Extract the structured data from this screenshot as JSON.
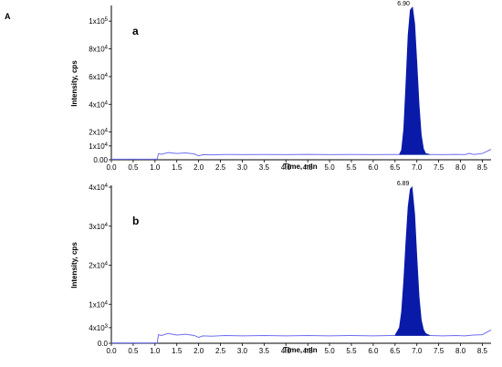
{
  "figure_label": "A",
  "chart_data": [
    {
      "type": "area",
      "panel_label": "a",
      "xlabel": "Time, min",
      "ylabel": "Intensity, cps",
      "xlim": [
        0,
        8.7
      ],
      "ylim": [
        0,
        110000
      ],
      "x_ticks": [
        0.0,
        0.5,
        1.0,
        1.5,
        2.0,
        2.5,
        3.0,
        3.5,
        4.0,
        4.5,
        5.0,
        5.5,
        6.0,
        6.5,
        7.0,
        7.5,
        8.0,
        8.5
      ],
      "x_tick_labels": [
        "0.0",
        "0.5",
        "1.0",
        "1.5",
        "2.0",
        "2.5",
        "3.0",
        "3.5",
        "4.0",
        "4.5",
        "5.0",
        "5.5",
        "6.0",
        "6.5",
        "7.0",
        "7.5",
        "8.0",
        "8.5"
      ],
      "y_ticks": [
        0,
        10000,
        20000,
        40000,
        60000,
        80000,
        100000
      ],
      "y_tick_labels": [
        "0.00",
        "1x10^4",
        "2x10^4",
        "4x10^4",
        "6x10^4",
        "8x10^4",
        "1x10^5"
      ],
      "baseline": {
        "x": [
          0.0,
          0.5,
          1.0,
          1.05,
          1.08,
          1.15,
          1.3,
          1.5,
          1.7,
          1.9,
          2.0,
          2.1,
          2.3,
          2.6,
          3.0,
          3.5,
          4.0,
          4.5,
          5.0,
          5.5,
          6.0,
          6.4,
          6.6
        ],
        "y": [
          400,
          400,
          400,
          400,
          4500,
          4000,
          5200,
          4500,
          4900,
          4200,
          2800,
          3700,
          3500,
          3800,
          3700,
          3800,
          3700,
          3900,
          3700,
          3800,
          3700,
          3800,
          3800
        ]
      },
      "peak": {
        "label": "6.90",
        "apex_x": 6.9,
        "apex_y": 110000,
        "x": [
          6.6,
          6.65,
          6.7,
          6.75,
          6.8,
          6.85,
          6.9,
          6.95,
          7.0,
          7.05,
          7.1,
          7.15,
          7.2,
          7.3
        ],
        "y": [
          3800,
          7000,
          22000,
          55000,
          90000,
          108000,
          110000,
          98000,
          70000,
          40000,
          18000,
          8000,
          4500,
          3800
        ]
      },
      "tail": {
        "x": [
          7.3,
          7.6,
          7.9,
          8.1,
          8.2,
          8.3,
          8.5,
          8.7
        ],
        "y": [
          3800,
          3700,
          3900,
          3700,
          4600,
          3800,
          4500,
          7500
        ]
      },
      "line_color": "#6f6ff0",
      "fill_color": "#0a1aa8"
    },
    {
      "type": "area",
      "panel_label": "b",
      "xlabel": "Time, min",
      "ylabel": "Intensity, cps",
      "xlim": [
        0,
        8.7
      ],
      "ylim": [
        0,
        40000
      ],
      "x_ticks": [
        0.0,
        0.5,
        1.0,
        1.5,
        2.0,
        2.5,
        3.0,
        3.5,
        4.0,
        4.5,
        5.0,
        5.5,
        6.0,
        6.5,
        7.0,
        7.5,
        8.0,
        8.5
      ],
      "x_tick_labels": [
        "0.0",
        "0.5",
        "1.0",
        "1.5",
        "2.0",
        "2.5",
        "3.0",
        "3.5",
        "4.0",
        "4.5",
        "5.0",
        "5.5",
        "6.0",
        "6.5",
        "7.0",
        "7.5",
        "8.0",
        "8.5"
      ],
      "y_ticks": [
        0,
        4000,
        10000,
        20000,
        30000,
        40000
      ],
      "y_tick_labels": [
        "0.0",
        "4x10^3",
        "1x10^4",
        "2x10^4",
        "3x10^4",
        "4x10^4"
      ],
      "baseline": {
        "x": [
          0.0,
          0.5,
          1.0,
          1.05,
          1.08,
          1.15,
          1.3,
          1.5,
          1.7,
          1.9,
          2.0,
          2.1,
          2.3,
          2.6,
          3.0,
          3.5,
          4.0,
          4.5,
          5.0,
          5.5,
          6.0,
          6.4,
          6.5
        ],
        "y": [
          100,
          100,
          100,
          100,
          2200,
          2000,
          2500,
          2100,
          2300,
          2000,
          1500,
          1900,
          1800,
          2000,
          1900,
          2000,
          1900,
          2000,
          1900,
          2000,
          1900,
          2000,
          2000
        ]
      },
      "peak": {
        "label": "6.89",
        "apex_x": 6.89,
        "apex_y": 40000,
        "x": [
          6.5,
          6.6,
          6.65,
          6.7,
          6.75,
          6.8,
          6.85,
          6.89,
          6.95,
          7.0,
          7.05,
          7.1,
          7.15,
          7.2,
          7.3
        ],
        "y": [
          2000,
          4000,
          8000,
          16000,
          26000,
          35000,
          39500,
          40000,
          33000,
          22000,
          12000,
          6000,
          3500,
          2500,
          2000
        ]
      },
      "tail": {
        "x": [
          7.3,
          7.6,
          7.9,
          8.1,
          8.3,
          8.5,
          8.7
        ],
        "y": [
          2000,
          1900,
          2000,
          1900,
          2100,
          2200,
          3400
        ]
      },
      "line_color": "#6f6ff0",
      "fill_color": "#0a1aa8"
    }
  ]
}
